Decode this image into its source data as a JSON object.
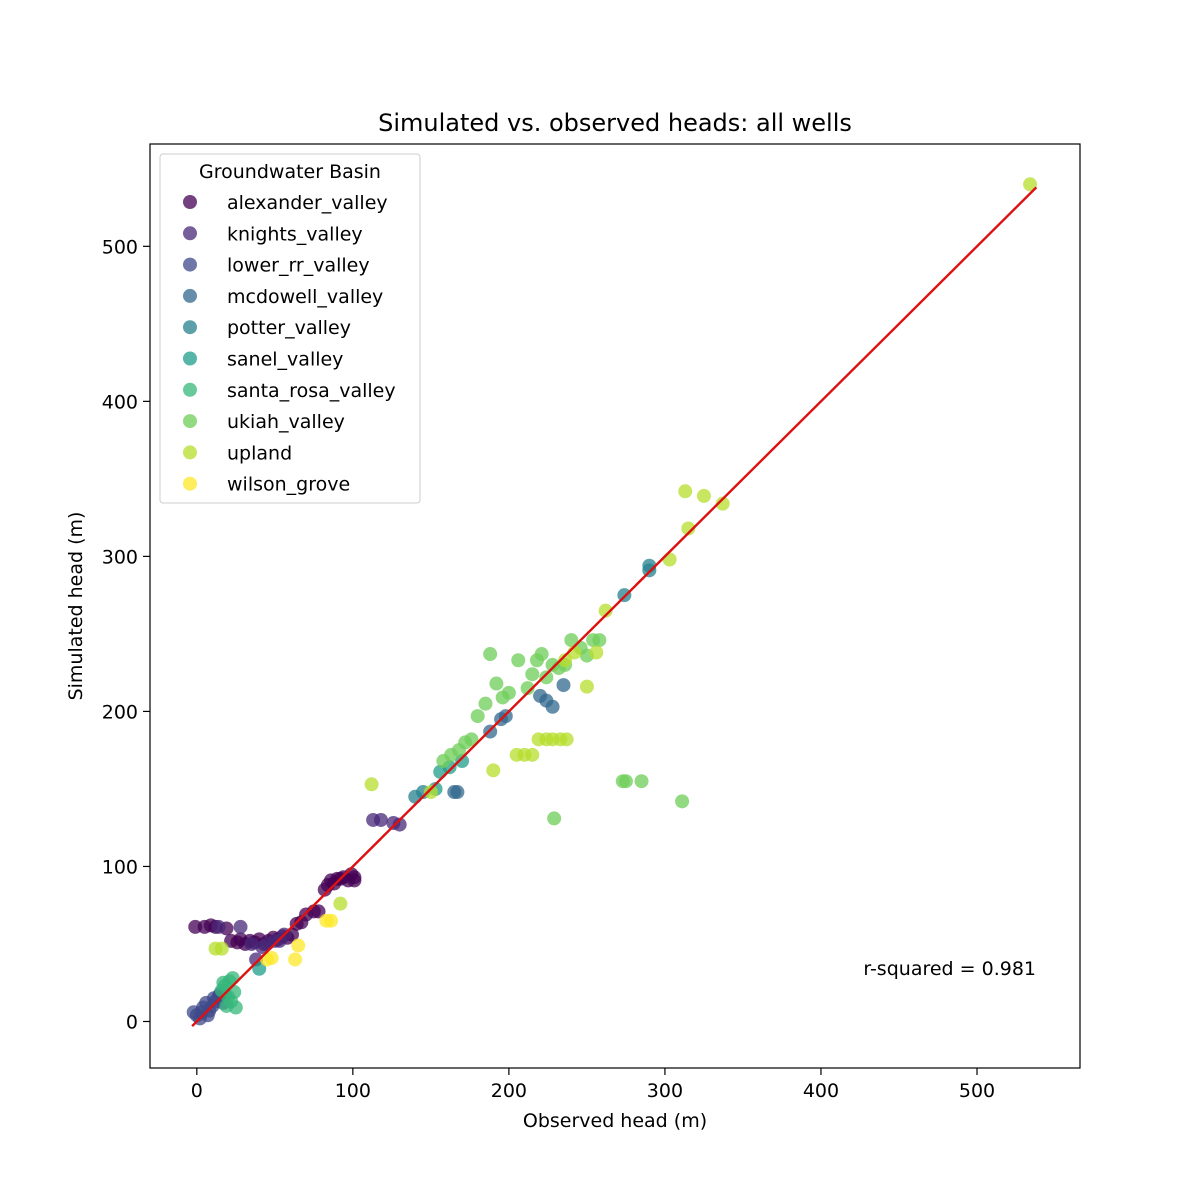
{
  "chart_data": {
    "type": "scatter",
    "title": "Simulated vs. observed heads: all wells",
    "xlabel": "Observed head (m)",
    "ylabel": "Simulated head (m)",
    "xlim": [
      -30,
      566
    ],
    "ylim": [
      -30,
      566
    ],
    "xticks": [
      0,
      100,
      200,
      300,
      400,
      500
    ],
    "yticks": [
      0,
      100,
      200,
      300,
      400,
      500
    ],
    "legend": {
      "title": "Groundwater Basin",
      "placement": "top-left"
    },
    "annotation": "r-squared = 0.981",
    "fit_line": {
      "x": [
        -3,
        538
      ],
      "y": [
        -3,
        538
      ],
      "color": "#dd1111"
    },
    "series": [
      {
        "name": "alexander_valley",
        "color": "#440154",
        "points": [
          [
            -1,
            61
          ],
          [
            5,
            61
          ],
          [
            9,
            62
          ],
          [
            12,
            61
          ],
          [
            19,
            60
          ],
          [
            22,
            52
          ],
          [
            26,
            51
          ],
          [
            28,
            53
          ],
          [
            31,
            50
          ],
          [
            34,
            52
          ],
          [
            37,
            51
          ],
          [
            40,
            53
          ],
          [
            43,
            50
          ],
          [
            46,
            52
          ],
          [
            49,
            54
          ],
          [
            52,
            53
          ],
          [
            55,
            55
          ],
          [
            58,
            54
          ],
          [
            61,
            56
          ],
          [
            64,
            63
          ],
          [
            67,
            64
          ],
          [
            70,
            69
          ],
          [
            75,
            71
          ],
          [
            78,
            71
          ],
          [
            82,
            85
          ],
          [
            84,
            88
          ],
          [
            86,
            91
          ],
          [
            88,
            89
          ],
          [
            90,
            92
          ],
          [
            92,
            92
          ],
          [
            94,
            93
          ],
          [
            97,
            91
          ],
          [
            99,
            95
          ],
          [
            101,
            93
          ],
          [
            101,
            91
          ]
        ]
      },
      {
        "name": "knights_valley",
        "color": "#482878",
        "points": [
          [
            14,
            61
          ],
          [
            28,
            61
          ],
          [
            35,
            50
          ],
          [
            38,
            40
          ],
          [
            42,
            48
          ],
          [
            45,
            50
          ],
          [
            50,
            52
          ],
          [
            53,
            52
          ],
          [
            56,
            56
          ],
          [
            113,
            130
          ],
          [
            118,
            130
          ],
          [
            126,
            128
          ],
          [
            130,
            127
          ]
        ]
      },
      {
        "name": "lower_rr_valley",
        "color": "#3e4a89",
        "points": [
          [
            -2,
            6
          ],
          [
            0,
            4
          ],
          [
            2,
            2
          ],
          [
            3,
            6
          ],
          [
            4,
            9
          ],
          [
            6,
            12
          ],
          [
            7,
            4
          ],
          [
            8,
            7
          ],
          [
            10,
            10
          ],
          [
            11,
            15
          ],
          [
            12,
            13
          ],
          [
            14,
            16
          ],
          [
            15,
            18
          ],
          [
            17,
            12
          ],
          [
            18,
            17
          ]
        ]
      },
      {
        "name": "mcdowell_valley",
        "color": "#31688e",
        "points": [
          [
            165,
            148
          ],
          [
            167,
            148
          ],
          [
            188,
            187
          ],
          [
            195,
            195
          ],
          [
            198,
            197
          ],
          [
            220,
            210
          ],
          [
            224,
            207
          ],
          [
            228,
            203
          ],
          [
            235,
            217
          ]
        ]
      },
      {
        "name": "potter_valley",
        "color": "#26828e",
        "points": [
          [
            140,
            145
          ],
          [
            145,
            148
          ],
          [
            274,
            275
          ],
          [
            290,
            291
          ],
          [
            290,
            294
          ]
        ]
      },
      {
        "name": "sanel_valley",
        "color": "#1f9e89",
        "points": [
          [
            40,
            34
          ],
          [
            153,
            150
          ],
          [
            156,
            161
          ],
          [
            162,
            164
          ],
          [
            170,
            168
          ]
        ]
      },
      {
        "name": "santa_rosa_valley",
        "color": "#35b779",
        "points": [
          [
            16,
            20
          ],
          [
            18,
            23
          ],
          [
            19,
            10
          ],
          [
            20,
            16
          ],
          [
            21,
            26
          ],
          [
            22,
            13
          ],
          [
            23,
            28
          ],
          [
            24,
            19
          ],
          [
            25,
            9
          ],
          [
            17,
            25
          ]
        ]
      },
      {
        "name": "ukiah_valley",
        "color": "#6ece58",
        "points": [
          [
            158,
            168
          ],
          [
            163,
            172
          ],
          [
            168,
            175
          ],
          [
            172,
            180
          ],
          [
            176,
            182
          ],
          [
            180,
            197
          ],
          [
            185,
            205
          ],
          [
            188,
            237
          ],
          [
            192,
            218
          ],
          [
            196,
            209
          ],
          [
            200,
            212
          ],
          [
            206,
            233
          ],
          [
            212,
            215
          ],
          [
            215,
            224
          ],
          [
            218,
            233
          ],
          [
            221,
            237
          ],
          [
            224,
            222
          ],
          [
            228,
            230
          ],
          [
            232,
            228
          ],
          [
            236,
            230
          ],
          [
            240,
            246
          ],
          [
            246,
            241
          ],
          [
            250,
            236
          ],
          [
            254,
            246
          ],
          [
            258,
            246
          ],
          [
            229,
            131
          ],
          [
            273,
            155
          ],
          [
            275,
            155
          ],
          [
            285,
            155
          ],
          [
            311,
            142
          ]
        ]
      },
      {
        "name": "upland",
        "color": "#b5de2b",
        "points": [
          [
            112,
            153
          ],
          [
            92,
            76
          ],
          [
            150,
            148
          ],
          [
            190,
            162
          ],
          [
            205,
            172
          ],
          [
            210,
            172
          ],
          [
            215,
            172
          ],
          [
            219,
            182
          ],
          [
            224,
            182
          ],
          [
            228,
            182
          ],
          [
            233,
            182
          ],
          [
            237,
            182
          ],
          [
            236,
            233
          ],
          [
            242,
            238
          ],
          [
            250,
            216
          ],
          [
            256,
            238
          ],
          [
            262,
            265
          ],
          [
            303,
            298
          ],
          [
            313,
            342
          ],
          [
            315,
            318
          ],
          [
            325,
            339
          ],
          [
            337,
            334
          ],
          [
            534,
            540
          ],
          [
            12,
            47
          ],
          [
            16,
            47
          ]
        ]
      },
      {
        "name": "wilson_grove",
        "color": "#fde725",
        "points": [
          [
            45,
            40
          ],
          [
            48,
            41
          ],
          [
            63,
            40
          ],
          [
            65,
            49
          ],
          [
            83,
            65
          ],
          [
            86,
            65
          ]
        ]
      }
    ]
  }
}
